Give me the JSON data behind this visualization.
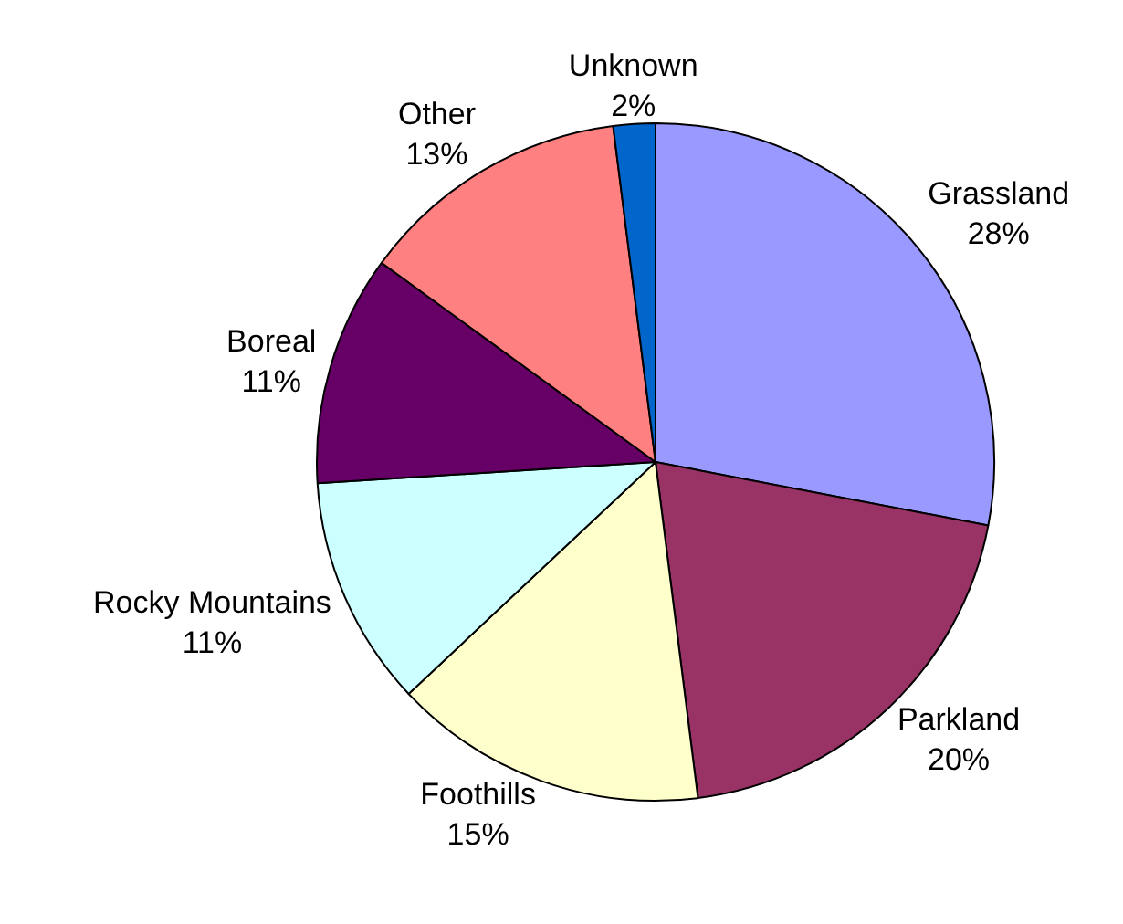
{
  "chart_data": {
    "type": "pie",
    "categories": [
      "Grassland",
      "Parkland",
      "Foothills",
      "Rocky Mountains",
      "Boreal",
      "Other",
      "Unknown"
    ],
    "values": [
      28,
      20,
      15,
      11,
      11,
      13,
      2
    ],
    "colors": [
      "#9999ff",
      "#993366",
      "#ffffcc",
      "#ccffff",
      "#660066",
      "#ff8080",
      "#0066cc"
    ],
    "value_labels": [
      "28%",
      "20%",
      "15%",
      "11%",
      "11%",
      "13%",
      "2%"
    ],
    "legend": false
  }
}
